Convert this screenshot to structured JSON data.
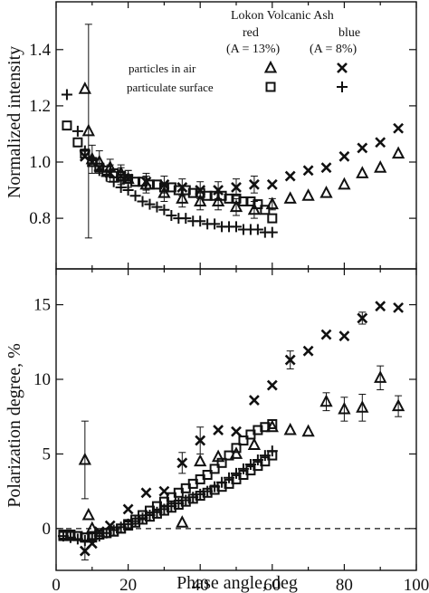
{
  "chart_data": [
    {
      "panel": "top",
      "type": "scatter",
      "title": "",
      "ylabel": "Normalized intensity",
      "xlim": [
        0,
        100
      ],
      "ylim": [
        0.62,
        1.57
      ],
      "yticks": [
        0.8,
        1.0,
        1.2,
        1.4
      ],
      "ytick_labels": [
        "0.8",
        "1.0",
        "1.2",
        "1.4"
      ],
      "legend": {
        "placement": "top-right",
        "heading": "Lokon Volcanic Ash",
        "col_red": "red",
        "col_blue": "blue",
        "col_red_sub": "(A = 13%)",
        "col_blue_sub": "(A = 8%)",
        "row_air": "particles in air",
        "row_surface": "particulate surface"
      },
      "series": [
        {
          "marker": "triangle",
          "x": [
            8,
            9,
            10,
            12,
            15,
            18,
            20,
            25,
            30,
            35,
            40,
            45,
            50,
            55,
            60,
            65,
            70,
            75,
            80,
            85,
            90,
            95
          ],
          "y": [
            1.26,
            1.11,
            1.01,
            1.0,
            0.98,
            0.96,
            0.94,
            0.92,
            0.89,
            0.87,
            0.86,
            0.86,
            0.84,
            0.83,
            0.85,
            0.87,
            0.88,
            0.89,
            0.92,
            0.96,
            0.98,
            1.03
          ],
          "yerr": [
            0.0,
            0.38,
            0.05,
            0.04,
            0.03,
            0.03,
            0.03,
            0.03,
            0.03,
            0.03,
            0.03,
            0.03,
            0.03,
            0.03,
            0.02,
            0.0,
            0.0,
            0.0,
            0.0,
            0.0,
            0.0,
            0.0
          ]
        },
        {
          "marker": "x",
          "x": [
            8,
            10,
            12,
            15,
            18,
            20,
            25,
            30,
            35,
            40,
            45,
            50,
            55,
            60,
            65,
            70,
            75,
            80,
            85,
            90,
            95
          ],
          "y": [
            1.02,
            1.0,
            0.98,
            0.96,
            0.95,
            0.94,
            0.93,
            0.92,
            0.91,
            0.9,
            0.9,
            0.91,
            0.92,
            0.92,
            0.95,
            0.97,
            0.98,
            1.02,
            1.05,
            1.07,
            1.12
          ],
          "yerr": [
            0.0,
            0.0,
            0.0,
            0.03,
            0.03,
            0.03,
            0.03,
            0.03,
            0.03,
            0.03,
            0.03,
            0.03,
            0.03,
            0.0,
            0.0,
            0.0,
            0.0,
            0.0,
            0.0,
            0.0,
            0.0
          ]
        },
        {
          "marker": "square",
          "x": [
            3,
            6,
            8,
            10,
            12,
            14,
            16,
            18,
            20,
            22,
            24,
            26,
            28,
            30,
            32,
            34,
            36,
            38,
            40,
            42,
            44,
            46,
            48,
            50,
            52,
            54,
            56,
            58,
            60
          ],
          "y": [
            1.13,
            1.07,
            1.03,
            1.0,
            0.98,
            0.97,
            0.96,
            0.95,
            0.94,
            0.93,
            0.93,
            0.92,
            0.92,
            0.91,
            0.91,
            0.9,
            0.9,
            0.89,
            0.89,
            0.88,
            0.88,
            0.88,
            0.87,
            0.87,
            0.86,
            0.86,
            0.85,
            0.83,
            0.8
          ]
        },
        {
          "marker": "plus",
          "x": [
            3,
            6,
            8,
            10,
            12,
            14,
            16,
            18,
            20,
            22,
            24,
            26,
            28,
            30,
            32,
            34,
            36,
            38,
            40,
            42,
            44,
            46,
            48,
            50,
            52,
            54,
            56,
            58,
            60
          ],
          "y": [
            1.24,
            1.11,
            1.04,
            1.01,
            0.97,
            0.95,
            0.93,
            0.91,
            0.9,
            0.88,
            0.86,
            0.85,
            0.84,
            0.83,
            0.81,
            0.8,
            0.8,
            0.79,
            0.79,
            0.78,
            0.78,
            0.77,
            0.77,
            0.77,
            0.76,
            0.76,
            0.76,
            0.75,
            0.75
          ]
        }
      ]
    },
    {
      "panel": "bottom",
      "type": "scatter",
      "title": "",
      "xlabel": "Phase angle, deg",
      "ylabel": "Polarization degree, %",
      "xlim": [
        0,
        100
      ],
      "ylim": [
        -2.8,
        17.4
      ],
      "xticks": [
        0,
        20,
        40,
        60,
        80,
        100
      ],
      "xtick_labels": [
        "0",
        "20",
        "40",
        "60",
        "80",
        "100"
      ],
      "yticks": [
        0,
        5,
        10,
        15
      ],
      "ytick_labels": [
        "0",
        "5",
        "10",
        "15"
      ],
      "reference_line": {
        "y": 0,
        "style": "dashed"
      },
      "series": [
        {
          "marker": "triangle",
          "x": [
            8,
            9,
            10,
            35,
            40,
            45,
            50,
            55,
            60,
            65,
            70,
            75,
            80,
            85,
            90,
            95
          ],
          "y": [
            4.6,
            0.9,
            0.0,
            0.4,
            4.5,
            4.8,
            5.0,
            5.6,
            6.8,
            6.6,
            6.5,
            8.5,
            8.0,
            8.1,
            10.1,
            8.2
          ],
          "yerr": [
            2.6,
            0.0,
            0.0,
            0.0,
            0.0,
            0.0,
            0.0,
            0.0,
            0.0,
            0.0,
            0.0,
            0.6,
            0.8,
            0.9,
            0.8,
            0.7
          ]
        },
        {
          "marker": "x",
          "x": [
            8,
            10,
            12,
            15,
            20,
            25,
            30,
            35,
            40,
            45,
            50,
            55,
            60,
            65,
            70,
            75,
            80,
            85,
            90,
            95
          ],
          "y": [
            -1.5,
            -1.0,
            -0.2,
            0.2,
            1.3,
            2.4,
            2.5,
            4.4,
            5.9,
            6.6,
            6.5,
            8.6,
            9.6,
            11.3,
            11.9,
            13.0,
            12.9,
            14.1,
            14.9,
            14.8
          ],
          "yerr": [
            0.6,
            0.0,
            0.0,
            0.0,
            0.0,
            0.0,
            0.0,
            0.7,
            0.9,
            0.0,
            0.0,
            0.0,
            0.0,
            0.6,
            0.0,
            0.0,
            0.0,
            0.4,
            0.0,
            0.0
          ]
        },
        {
          "marker": "square",
          "x": [
            2,
            4,
            6,
            8,
            10,
            12,
            14,
            16,
            18,
            20,
            22,
            24,
            26,
            28,
            30,
            32,
            34,
            36,
            38,
            40,
            42,
            44,
            46,
            48,
            50,
            52,
            54,
            56,
            58,
            60
          ],
          "y": [
            -0.5,
            -0.5,
            -0.5,
            -0.6,
            -0.6,
            -0.4,
            -0.3,
            -0.2,
            0.0,
            0.3,
            0.6,
            0.9,
            1.2,
            1.5,
            1.8,
            2.1,
            2.4,
            2.7,
            3.0,
            3.3,
            3.6,
            4.0,
            4.4,
            4.9,
            5.4,
            5.9,
            6.3,
            6.6,
            6.8,
            7.0
          ],
          "yerr": [
            0.0,
            0.0,
            0.0,
            0.0,
            0.0,
            0.0,
            0.0,
            0.0,
            0.0,
            0.0,
            0.0,
            0.0,
            0.0,
            0.0,
            0.0,
            0.0,
            0.0,
            0.0,
            0.0,
            0.0,
            0.0,
            0.0,
            0.0,
            0.0,
            0.0,
            0.0,
            0.0,
            0.0,
            0.0,
            0.0
          ]
        },
        {
          "marker": "square",
          "x": [
            2,
            4,
            6,
            8,
            10,
            12,
            14,
            16,
            18,
            20,
            22,
            24,
            26,
            28,
            30,
            32,
            34,
            36,
            38,
            40,
            42,
            44,
            46,
            48,
            50,
            52,
            54,
            56,
            58,
            60
          ],
          "y": [
            -0.4,
            -0.4,
            -0.5,
            -0.6,
            -0.5,
            -0.4,
            -0.3,
            -0.2,
            0.0,
            0.2,
            0.4,
            0.6,
            0.8,
            1.0,
            1.2,
            1.4,
            1.6,
            1.8,
            2.0,
            2.2,
            2.4,
            2.6,
            2.8,
            3.0,
            3.3,
            3.6,
            3.9,
            4.2,
            4.5,
            4.9
          ],
          "yerr": [
            0.0,
            0.0,
            0.0,
            0.0,
            0.0,
            0.0,
            0.0,
            0.0,
            0.0,
            0.0,
            0.0,
            0.0,
            0.0,
            0.0,
            0.0,
            0.0,
            0.0,
            0.0,
            0.0,
            0.0,
            0.0,
            0.0,
            0.0,
            0.0,
            0.0,
            0.0,
            0.0,
            0.0,
            0.0,
            0.0
          ]
        },
        {
          "marker": "plus",
          "x": [
            2,
            4,
            6,
            8,
            10,
            12,
            14,
            16,
            18,
            20,
            22,
            24,
            26,
            28,
            30,
            32,
            34,
            36,
            38,
            40,
            42,
            44,
            46,
            48,
            50,
            52,
            54,
            56,
            58,
            60
          ],
          "y": [
            -0.5,
            -0.6,
            -0.7,
            -0.8,
            -0.7,
            -0.5,
            -0.3,
            -0.1,
            0.1,
            0.3,
            0.5,
            0.7,
            0.9,
            1.1,
            1.3,
            1.5,
            1.7,
            1.9,
            2.1,
            2.3,
            2.5,
            2.8,
            3.1,
            3.4,
            3.7,
            4.0,
            4.3,
            4.6,
            4.9,
            5.2
          ]
        }
      ]
    }
  ]
}
